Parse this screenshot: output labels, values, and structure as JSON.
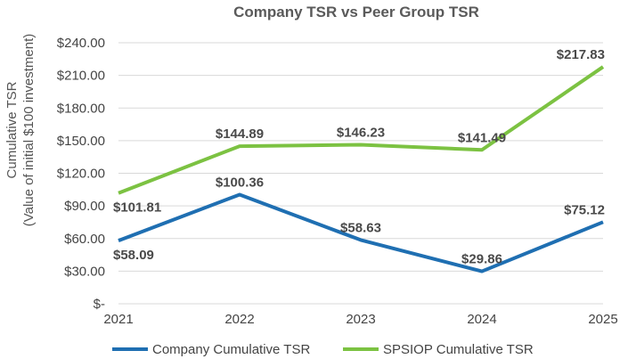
{
  "chart_data": {
    "type": "line",
    "title": "Company TSR vs Peer Group TSR",
    "ylabel_lines": [
      "Cumulative TSR",
      "(Value of initial $100 investment)"
    ],
    "xlabel": "",
    "categories": [
      "2021",
      "2022",
      "2023",
      "2024",
      "2025"
    ],
    "ylim": [
      0,
      240
    ],
    "yticks": [
      0,
      30,
      60,
      90,
      120,
      150,
      180,
      210,
      240
    ],
    "ytick_labels": [
      "$-",
      "$30.00",
      "$60.00",
      "$90.00",
      "$120.00",
      "$150.00",
      "$180.00",
      "$210.00",
      "$240.00"
    ],
    "grid": true,
    "legend_position": "bottom",
    "series": [
      {
        "name": "Company Cumulative TSR",
        "color": "#1f6fb2",
        "values": [
          58.09,
          100.36,
          58.63,
          29.86,
          75.12
        ],
        "labels": [
          "$58.09",
          "$100.36",
          "$58.63",
          "$29.86",
          "$75.12"
        ],
        "label_side": [
          "below",
          "above",
          "above",
          "above",
          "above"
        ]
      },
      {
        "name": "SPSIOP Cumulative TSR",
        "color": "#7cc242",
        "values": [
          101.81,
          144.89,
          146.23,
          141.49,
          217.83
        ],
        "labels": [
          "$101.81",
          "$144.89",
          "$146.23",
          "$141.49",
          "$217.83"
        ],
        "label_side": [
          "below",
          "above",
          "above",
          "above",
          "above"
        ]
      }
    ]
  }
}
